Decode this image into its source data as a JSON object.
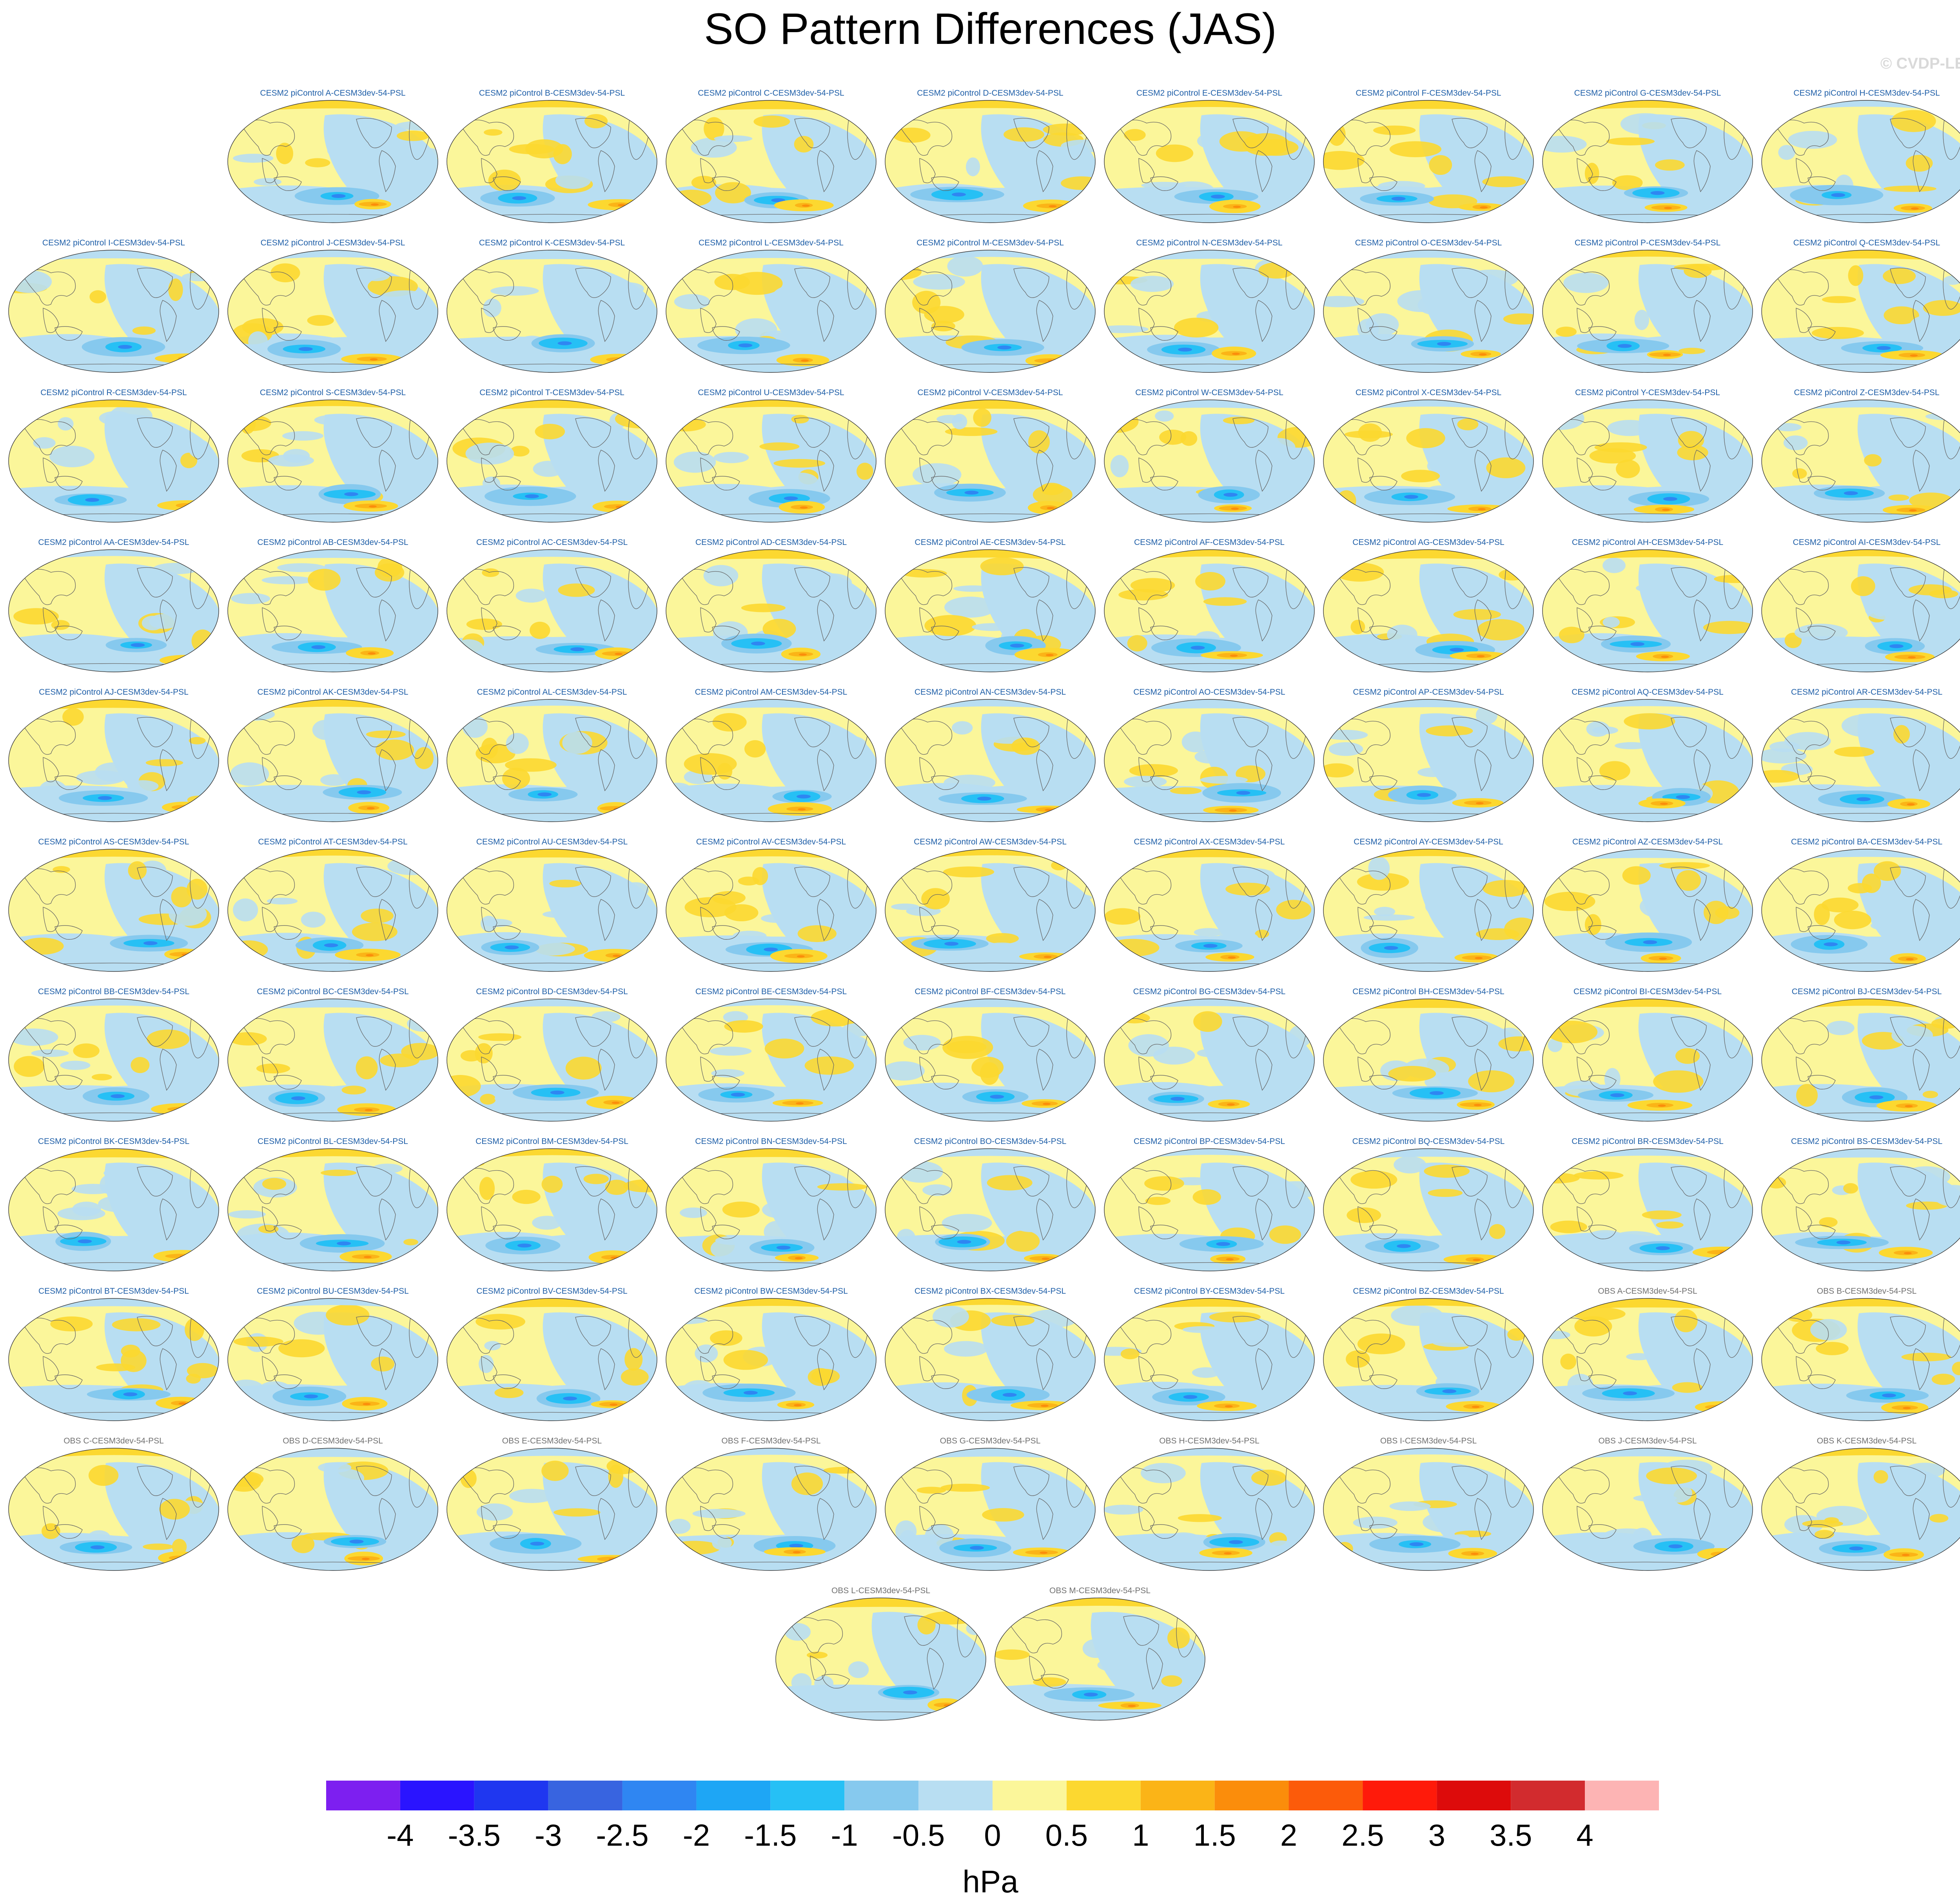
{
  "title": "SO Pattern Differences (JAS)",
  "credit": "© CVDP-LE",
  "units": "hPa",
  "colorbar": {
    "colors": [
      "#7d1ff0",
      "#2a14ff",
      "#1f37f0",
      "#3864e0",
      "#2f86f2",
      "#1ea6f5",
      "#26c0f5",
      "#86c9ee",
      "#b8def2",
      "#fbf69a",
      "#fcd830",
      "#fbb417",
      "#fb8d0b",
      "#fc5b0a",
      "#ff1a0a",
      "#dd0b0b",
      "#d22b2e",
      "#fdb4b4"
    ],
    "labels": [
      "-4",
      "-3.5",
      "-3",
      "-2.5",
      "-2",
      "-1.5",
      "-1",
      "-0.5",
      "0",
      "0.5",
      "1",
      "1.5",
      "2",
      "2.5",
      "3",
      "3.5",
      "4"
    ]
  },
  "panels": [
    {
      "title": "CESM2 piControl A-CESM3dev-54-PSL",
      "group": "model"
    },
    {
      "title": "CESM2 piControl B-CESM3dev-54-PSL",
      "group": "model"
    },
    {
      "title": "CESM2 piControl C-CESM3dev-54-PSL",
      "group": "model"
    },
    {
      "title": "CESM2 piControl D-CESM3dev-54-PSL",
      "group": "model"
    },
    {
      "title": "CESM2 piControl E-CESM3dev-54-PSL",
      "group": "model"
    },
    {
      "title": "CESM2 piControl F-CESM3dev-54-PSL",
      "group": "model"
    },
    {
      "title": "CESM2 piControl G-CESM3dev-54-PSL",
      "group": "model"
    },
    {
      "title": "CESM2 piControl H-CESM3dev-54-PSL",
      "group": "model"
    },
    {
      "title": "CESM2 piControl I-CESM3dev-54-PSL",
      "group": "model"
    },
    {
      "title": "CESM2 piControl J-CESM3dev-54-PSL",
      "group": "model"
    },
    {
      "title": "CESM2 piControl K-CESM3dev-54-PSL",
      "group": "model"
    },
    {
      "title": "CESM2 piControl L-CESM3dev-54-PSL",
      "group": "model"
    },
    {
      "title": "CESM2 piControl M-CESM3dev-54-PSL",
      "group": "model"
    },
    {
      "title": "CESM2 piControl N-CESM3dev-54-PSL",
      "group": "model"
    },
    {
      "title": "CESM2 piControl O-CESM3dev-54-PSL",
      "group": "model"
    },
    {
      "title": "CESM2 piControl P-CESM3dev-54-PSL",
      "group": "model"
    },
    {
      "title": "CESM2 piControl Q-CESM3dev-54-PSL",
      "group": "model"
    },
    {
      "title": "CESM2 piControl R-CESM3dev-54-PSL",
      "group": "model"
    },
    {
      "title": "CESM2 piControl S-CESM3dev-54-PSL",
      "group": "model"
    },
    {
      "title": "CESM2 piControl T-CESM3dev-54-PSL",
      "group": "model"
    },
    {
      "title": "CESM2 piControl U-CESM3dev-54-PSL",
      "group": "model"
    },
    {
      "title": "CESM2 piControl V-CESM3dev-54-PSL",
      "group": "model"
    },
    {
      "title": "CESM2 piControl W-CESM3dev-54-PSL",
      "group": "model"
    },
    {
      "title": "CESM2 piControl X-CESM3dev-54-PSL",
      "group": "model"
    },
    {
      "title": "CESM2 piControl Y-CESM3dev-54-PSL",
      "group": "model"
    },
    {
      "title": "CESM2 piControl Z-CESM3dev-54-PSL",
      "group": "model"
    },
    {
      "title": "CESM2 piControl AA-CESM3dev-54-PSL",
      "group": "model"
    },
    {
      "title": "CESM2 piControl AB-CESM3dev-54-PSL",
      "group": "model"
    },
    {
      "title": "CESM2 piControl AC-CESM3dev-54-PSL",
      "group": "model"
    },
    {
      "title": "CESM2 piControl AD-CESM3dev-54-PSL",
      "group": "model"
    },
    {
      "title": "CESM2 piControl AE-CESM3dev-54-PSL",
      "group": "model"
    },
    {
      "title": "CESM2 piControl AF-CESM3dev-54-PSL",
      "group": "model"
    },
    {
      "title": "CESM2 piControl AG-CESM3dev-54-PSL",
      "group": "model"
    },
    {
      "title": "CESM2 piControl AH-CESM3dev-54-PSL",
      "group": "model"
    },
    {
      "title": "CESM2 piControl AI-CESM3dev-54-PSL",
      "group": "model"
    },
    {
      "title": "CESM2 piControl AJ-CESM3dev-54-PSL",
      "group": "model"
    },
    {
      "title": "CESM2 piControl AK-CESM3dev-54-PSL",
      "group": "model"
    },
    {
      "title": "CESM2 piControl AL-CESM3dev-54-PSL",
      "group": "model"
    },
    {
      "title": "CESM2 piControl AM-CESM3dev-54-PSL",
      "group": "model"
    },
    {
      "title": "CESM2 piControl AN-CESM3dev-54-PSL",
      "group": "model"
    },
    {
      "title": "CESM2 piControl AO-CESM3dev-54-PSL",
      "group": "model"
    },
    {
      "title": "CESM2 piControl AP-CESM3dev-54-PSL",
      "group": "model"
    },
    {
      "title": "CESM2 piControl AQ-CESM3dev-54-PSL",
      "group": "model"
    },
    {
      "title": "CESM2 piControl AR-CESM3dev-54-PSL",
      "group": "model"
    },
    {
      "title": "CESM2 piControl AS-CESM3dev-54-PSL",
      "group": "model"
    },
    {
      "title": "CESM2 piControl AT-CESM3dev-54-PSL",
      "group": "model"
    },
    {
      "title": "CESM2 piControl AU-CESM3dev-54-PSL",
      "group": "model"
    },
    {
      "title": "CESM2 piControl AV-CESM3dev-54-PSL",
      "group": "model"
    },
    {
      "title": "CESM2 piControl AW-CESM3dev-54-PSL",
      "group": "model"
    },
    {
      "title": "CESM2 piControl AX-CESM3dev-54-PSL",
      "group": "model"
    },
    {
      "title": "CESM2 piControl AY-CESM3dev-54-PSL",
      "group": "model"
    },
    {
      "title": "CESM2 piControl AZ-CESM3dev-54-PSL",
      "group": "model"
    },
    {
      "title": "CESM2 piControl BA-CESM3dev-54-PSL",
      "group": "model"
    },
    {
      "title": "CESM2 piControl BB-CESM3dev-54-PSL",
      "group": "model"
    },
    {
      "title": "CESM2 piControl BC-CESM3dev-54-PSL",
      "group": "model"
    },
    {
      "title": "CESM2 piControl BD-CESM3dev-54-PSL",
      "group": "model"
    },
    {
      "title": "CESM2 piControl BE-CESM3dev-54-PSL",
      "group": "model"
    },
    {
      "title": "CESM2 piControl BF-CESM3dev-54-PSL",
      "group": "model"
    },
    {
      "title": "CESM2 piControl BG-CESM3dev-54-PSL",
      "group": "model"
    },
    {
      "title": "CESM2 piControl BH-CESM3dev-54-PSL",
      "group": "model"
    },
    {
      "title": "CESM2 piControl BI-CESM3dev-54-PSL",
      "group": "model"
    },
    {
      "title": "CESM2 piControl BJ-CESM3dev-54-PSL",
      "group": "model"
    },
    {
      "title": "CESM2 piControl BK-CESM3dev-54-PSL",
      "group": "model"
    },
    {
      "title": "CESM2 piControl BL-CESM3dev-54-PSL",
      "group": "model"
    },
    {
      "title": "CESM2 piControl BM-CESM3dev-54-PSL",
      "group": "model"
    },
    {
      "title": "CESM2 piControl BN-CESM3dev-54-PSL",
      "group": "model"
    },
    {
      "title": "CESM2 piControl BO-CESM3dev-54-PSL",
      "group": "model"
    },
    {
      "title": "CESM2 piControl BP-CESM3dev-54-PSL",
      "group": "model"
    },
    {
      "title": "CESM2 piControl BQ-CESM3dev-54-PSL",
      "group": "model"
    },
    {
      "title": "CESM2 piControl BR-CESM3dev-54-PSL",
      "group": "model"
    },
    {
      "title": "CESM2 piControl BS-CESM3dev-54-PSL",
      "group": "model"
    },
    {
      "title": "CESM2 piControl BT-CESM3dev-54-PSL",
      "group": "model"
    },
    {
      "title": "CESM2 piControl BU-CESM3dev-54-PSL",
      "group": "model"
    },
    {
      "title": "CESM2 piControl BV-CESM3dev-54-PSL",
      "group": "model"
    },
    {
      "title": "CESM2 piControl BW-CESM3dev-54-PSL",
      "group": "model"
    },
    {
      "title": "CESM2 piControl BX-CESM3dev-54-PSL",
      "group": "model"
    },
    {
      "title": "CESM2 piControl BY-CESM3dev-54-PSL",
      "group": "model"
    },
    {
      "title": "CESM2 piControl BZ-CESM3dev-54-PSL",
      "group": "model"
    },
    {
      "title": "OBS A-CESM3dev-54-PSL",
      "group": "obs"
    },
    {
      "title": "OBS B-CESM3dev-54-PSL",
      "group": "obs"
    },
    {
      "title": "OBS C-CESM3dev-54-PSL",
      "group": "obs"
    },
    {
      "title": "OBS D-CESM3dev-54-PSL",
      "group": "obs"
    },
    {
      "title": "OBS E-CESM3dev-54-PSL",
      "group": "obs"
    },
    {
      "title": "OBS F-CESM3dev-54-PSL",
      "group": "obs"
    },
    {
      "title": "OBS G-CESM3dev-54-PSL",
      "group": "obs"
    },
    {
      "title": "OBS H-CESM3dev-54-PSL",
      "group": "obs"
    },
    {
      "title": "OBS I-CESM3dev-54-PSL",
      "group": "obs"
    },
    {
      "title": "OBS J-CESM3dev-54-PSL",
      "group": "obs"
    },
    {
      "title": "OBS K-CESM3dev-54-PSL",
      "group": "obs"
    },
    {
      "title": "OBS L-CESM3dev-54-PSL",
      "group": "obs"
    },
    {
      "title": "OBS M-CESM3dev-54-PSL",
      "group": "obs"
    }
  ]
}
